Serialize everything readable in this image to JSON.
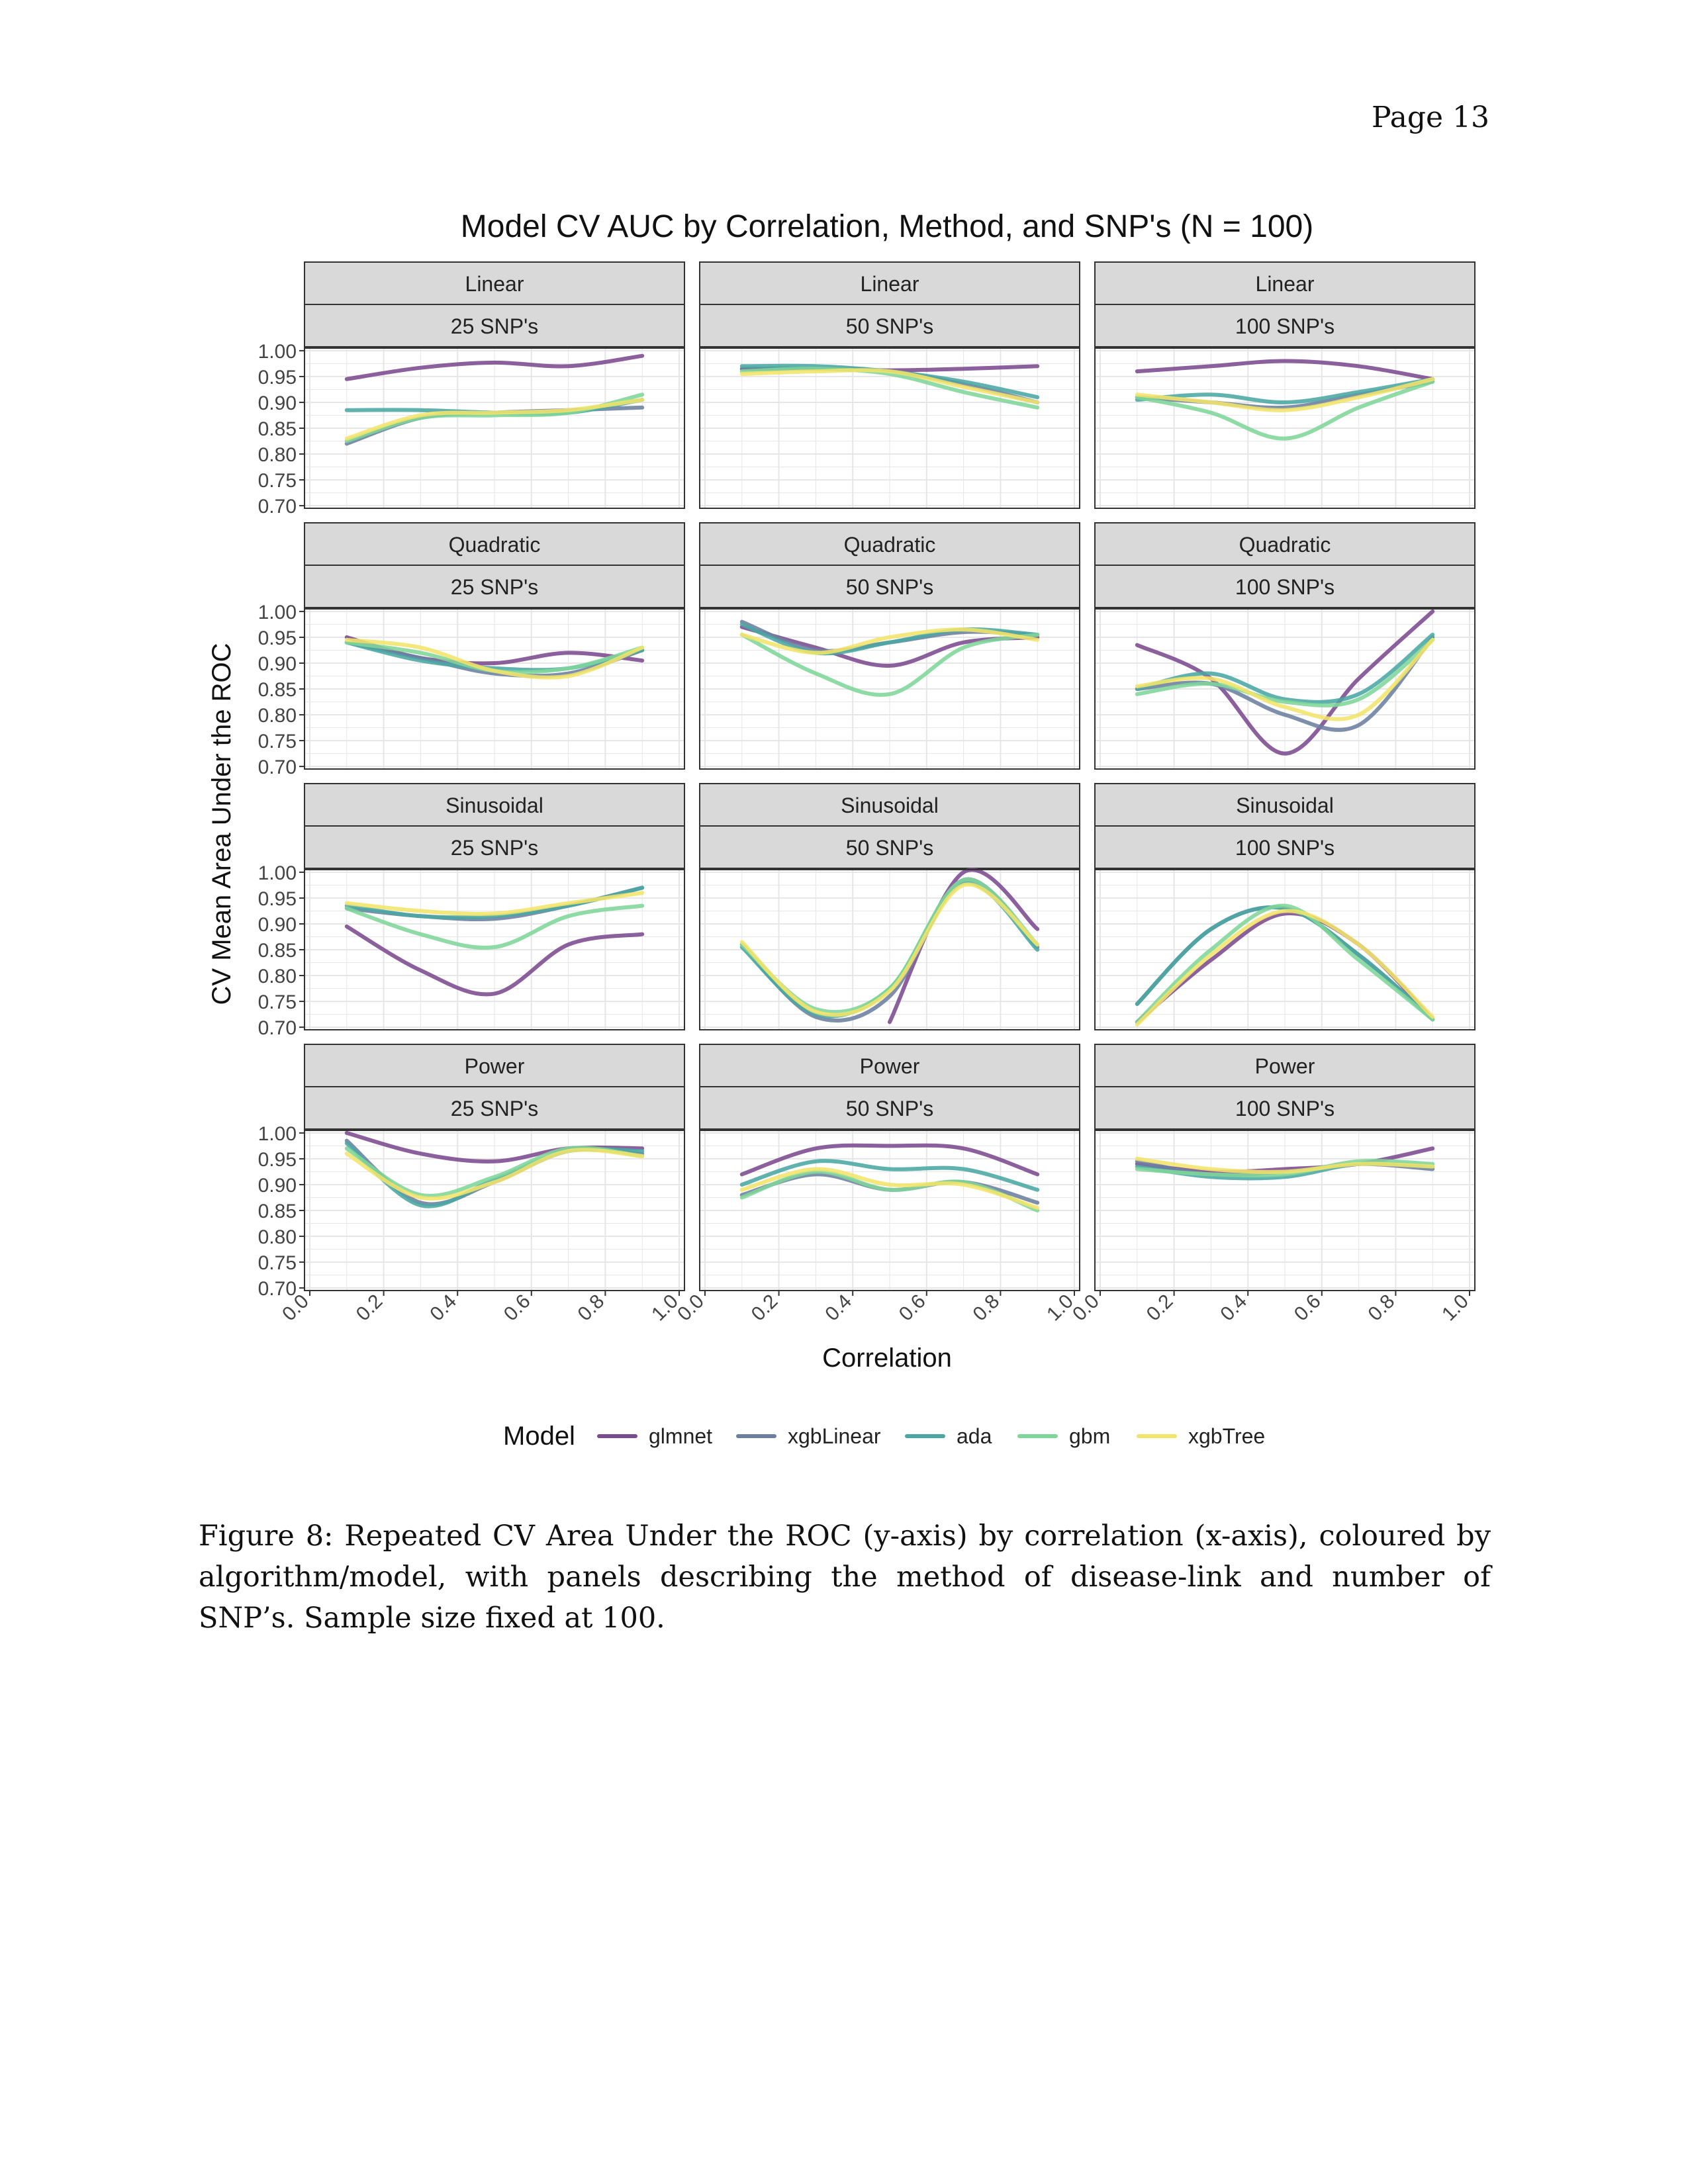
{
  "page": {
    "number_label": "Page  13"
  },
  "caption": "Figure 8: Repeated CV Area Under the ROC (y-axis) by correlation (x-axis), coloured by algorithm/model, with panels describing the method of disease-link and number of SNP’s. Sample size fixed at 100.",
  "colors": {
    "glmnet": "#7b4a8f",
    "xgbLinear": "#6c7fa0",
    "ada": "#4aa7a3",
    "gbm": "#7fd69a",
    "xgbTree": "#f3e46a",
    "strip_bg": "#d9d9d9",
    "grid": "#e6e6e6",
    "border": "#333333"
  },
  "chart_data": {
    "type": "line",
    "title": "Model CV AUC by Correlation, Method, and SNP's (N = 100)",
    "xlabel": "Correlation",
    "ylabel": "CV Mean Area Under the ROC",
    "xlim": [
      0,
      1
    ],
    "ylim": [
      0.695,
      1.005
    ],
    "xticks": [
      "0.0",
      "0.2",
      "0.4",
      "0.6",
      "0.8",
      "1.0"
    ],
    "yticks": [
      "0.70",
      "0.75",
      "0.80",
      "0.85",
      "0.90",
      "0.95",
      "1.00"
    ],
    "grid": true,
    "legend": {
      "title": "Model",
      "position": "bottom",
      "entries": [
        "glmnet",
        "xgbLinear",
        "ada",
        "gbm",
        "xgbTree"
      ]
    },
    "x": [
      0.1,
      0.3,
      0.5,
      0.7,
      0.9
    ],
    "facet_rows": [
      "Linear",
      "Quadratic",
      "Sinusoidal",
      "Power"
    ],
    "facet_cols": [
      "25  SNP's",
      "50  SNP's",
      "100 SNP's"
    ],
    "panels": [
      {
        "method": "Linear",
        "snps": "25  SNP's",
        "series": [
          {
            "name": "glmnet",
            "values": [
              0.945,
              0.967,
              0.977,
              0.97,
              0.99
            ]
          },
          {
            "name": "xgbLinear",
            "values": [
              0.82,
              0.87,
              0.88,
              0.885,
              0.89
            ]
          },
          {
            "name": "ada",
            "values": [
              0.885,
              0.885,
              0.88,
              0.88,
              0.905
            ]
          },
          {
            "name": "gbm",
            "values": [
              0.825,
              0.87,
              0.875,
              0.88,
              0.915
            ]
          },
          {
            "name": "xgbTree",
            "values": [
              0.83,
              0.875,
              0.88,
              0.885,
              0.905
            ]
          }
        ]
      },
      {
        "method": "Linear",
        "snps": "50  SNP's",
        "series": [
          {
            "name": "glmnet",
            "values": [
              0.965,
              0.965,
              0.962,
              0.965,
              0.97
            ]
          },
          {
            "name": "xgbLinear",
            "values": [
              0.965,
              0.965,
              0.96,
              0.935,
              0.9
            ]
          },
          {
            "name": "ada",
            "values": [
              0.97,
              0.97,
              0.96,
              0.94,
              0.91
            ]
          },
          {
            "name": "gbm",
            "values": [
              0.96,
              0.965,
              0.955,
              0.92,
              0.89
            ]
          },
          {
            "name": "xgbTree",
            "values": [
              0.955,
              0.96,
              0.96,
              0.93,
              0.9
            ]
          }
        ]
      },
      {
        "method": "Linear",
        "snps": "100 SNP's",
        "series": [
          {
            "name": "glmnet",
            "values": [
              0.96,
              0.97,
              0.98,
              0.97,
              0.945
            ]
          },
          {
            "name": "xgbLinear",
            "values": [
              0.91,
              0.9,
              0.89,
              0.915,
              0.94
            ]
          },
          {
            "name": "ada",
            "values": [
              0.905,
              0.915,
              0.9,
              0.92,
              0.945
            ]
          },
          {
            "name": "gbm",
            "values": [
              0.91,
              0.88,
              0.83,
              0.89,
              0.94
            ]
          },
          {
            "name": "xgbTree",
            "values": [
              0.915,
              0.9,
              0.885,
              0.91,
              0.945
            ]
          }
        ]
      },
      {
        "method": "Quadratic",
        "snps": "25  SNP's",
        "series": [
          {
            "name": "glmnet",
            "values": [
              0.95,
              0.91,
              0.9,
              0.92,
              0.905
            ]
          },
          {
            "name": "xgbLinear",
            "values": [
              0.94,
              0.91,
              0.88,
              0.88,
              0.925
            ]
          },
          {
            "name": "ada",
            "values": [
              0.94,
              0.905,
              0.89,
              0.89,
              0.925
            ]
          },
          {
            "name": "gbm",
            "values": [
              0.94,
              0.92,
              0.885,
              0.89,
              0.93
            ]
          },
          {
            "name": "xgbTree",
            "values": [
              0.945,
              0.93,
              0.885,
              0.875,
              0.93
            ]
          }
        ]
      },
      {
        "method": "Quadratic",
        "snps": "50  SNP's",
        "series": [
          {
            "name": "glmnet",
            "values": [
              0.97,
              0.93,
              0.895,
              0.94,
              0.95
            ]
          },
          {
            "name": "xgbLinear",
            "values": [
              0.98,
              0.925,
              0.94,
              0.96,
              0.955
            ]
          },
          {
            "name": "ada",
            "values": [
              0.975,
              0.92,
              0.94,
              0.965,
              0.955
            ]
          },
          {
            "name": "gbm",
            "values": [
              0.955,
              0.88,
              0.84,
              0.93,
              0.955
            ]
          },
          {
            "name": "xgbTree",
            "values": [
              0.955,
              0.92,
              0.95,
              0.965,
              0.945
            ]
          }
        ]
      },
      {
        "method": "Quadratic",
        "snps": "100 SNP's",
        "series": [
          {
            "name": "glmnet",
            "values": [
              0.935,
              0.87,
              0.725,
              0.87,
              1.0
            ]
          },
          {
            "name": "xgbLinear",
            "values": [
              0.85,
              0.86,
              0.8,
              0.78,
              0.95
            ]
          },
          {
            "name": "ada",
            "values": [
              0.85,
              0.88,
              0.83,
              0.84,
              0.955
            ]
          },
          {
            "name": "gbm",
            "values": [
              0.84,
              0.86,
              0.825,
              0.83,
              0.945
            ]
          },
          {
            "name": "xgbTree",
            "values": [
              0.855,
              0.87,
              0.815,
              0.8,
              0.945
            ]
          }
        ]
      },
      {
        "method": "Sinusoidal",
        "snps": "25  SNP's",
        "series": [
          {
            "name": "glmnet",
            "values": [
              0.895,
              0.81,
              0.765,
              0.86,
              0.88
            ]
          },
          {
            "name": "xgbLinear",
            "values": [
              0.93,
              0.915,
              0.91,
              0.935,
              0.97
            ]
          },
          {
            "name": "ada",
            "values": [
              0.935,
              0.915,
              0.915,
              0.935,
              0.97
            ]
          },
          {
            "name": "gbm",
            "values": [
              0.93,
              0.88,
              0.855,
              0.915,
              0.935
            ]
          },
          {
            "name": "xgbTree",
            "values": [
              0.94,
              0.925,
              0.92,
              0.94,
              0.96
            ]
          }
        ]
      },
      {
        "method": "Sinusoidal",
        "snps": "50  SNP's",
        "series": [
          {
            "name": "glmnet",
            "values": [
              null,
              null,
              0.71,
              1.0,
              0.89
            ]
          },
          {
            "name": "xgbLinear",
            "values": [
              0.86,
              0.72,
              0.76,
              0.985,
              0.855
            ]
          },
          {
            "name": "ada",
            "values": [
              0.855,
              0.725,
              0.775,
              0.98,
              0.85
            ]
          },
          {
            "name": "gbm",
            "values": [
              0.86,
              0.735,
              0.775,
              0.985,
              0.86
            ]
          },
          {
            "name": "xgbTree",
            "values": [
              0.865,
              0.73,
              0.77,
              0.975,
              0.86
            ]
          }
        ]
      },
      {
        "method": "Sinusoidal",
        "snps": "100 SNP's",
        "series": [
          {
            "name": "glmnet",
            "values": [
              0.71,
              0.83,
              0.92,
              0.86,
              0.715
            ]
          },
          {
            "name": "xgbLinear",
            "values": [
              0.745,
              0.89,
              0.93,
              0.84,
              0.715
            ]
          },
          {
            "name": "ada",
            "values": [
              0.745,
              0.89,
              0.93,
              0.84,
              0.715
            ]
          },
          {
            "name": "gbm",
            "values": [
              0.71,
              0.85,
              0.935,
              0.83,
              0.715
            ]
          },
          {
            "name": "xgbTree",
            "values": [
              0.705,
              0.84,
              0.925,
              0.86,
              0.72
            ]
          }
        ]
      },
      {
        "method": "Power",
        "snps": "25  SNP's",
        "series": [
          {
            "name": "glmnet",
            "values": [
              1.0,
              0.96,
              0.945,
              0.97,
              0.97
            ]
          },
          {
            "name": "xgbLinear",
            "values": [
              0.985,
              0.865,
              0.905,
              0.965,
              0.96
            ]
          },
          {
            "name": "ada",
            "values": [
              0.98,
              0.86,
              0.91,
              0.965,
              0.965
            ]
          },
          {
            "name": "gbm",
            "values": [
              0.97,
              0.88,
              0.915,
              0.97,
              0.955
            ]
          },
          {
            "name": "xgbTree",
            "values": [
              0.96,
              0.875,
              0.905,
              0.965,
              0.955
            ]
          }
        ]
      },
      {
        "method": "Power",
        "snps": "50  SNP's",
        "series": [
          {
            "name": "glmnet",
            "values": [
              0.92,
              0.97,
              0.975,
              0.97,
              0.92
            ]
          },
          {
            "name": "xgbLinear",
            "values": [
              0.88,
              0.92,
              0.89,
              0.905,
              0.865
            ]
          },
          {
            "name": "ada",
            "values": [
              0.9,
              0.945,
              0.93,
              0.93,
              0.89
            ]
          },
          {
            "name": "gbm",
            "values": [
              0.875,
              0.925,
              0.89,
              0.905,
              0.85
            ]
          },
          {
            "name": "xgbTree",
            "values": [
              0.89,
              0.93,
              0.9,
              0.9,
              0.855
            ]
          }
        ]
      },
      {
        "method": "Power",
        "snps": "100 SNP's",
        "series": [
          {
            "name": "glmnet",
            "values": [
              0.94,
              0.925,
              0.93,
              0.94,
              0.97
            ]
          },
          {
            "name": "xgbLinear",
            "values": [
              0.945,
              0.92,
              0.925,
              0.94,
              0.93
            ]
          },
          {
            "name": "ada",
            "values": [
              0.935,
              0.915,
              0.915,
              0.94,
              0.935
            ]
          },
          {
            "name": "gbm",
            "values": [
              0.93,
              0.92,
              0.92,
              0.945,
              0.94
            ]
          },
          {
            "name": "xgbTree",
            "values": [
              0.95,
              0.93,
              0.925,
              0.94,
              0.935
            ]
          }
        ]
      }
    ]
  }
}
